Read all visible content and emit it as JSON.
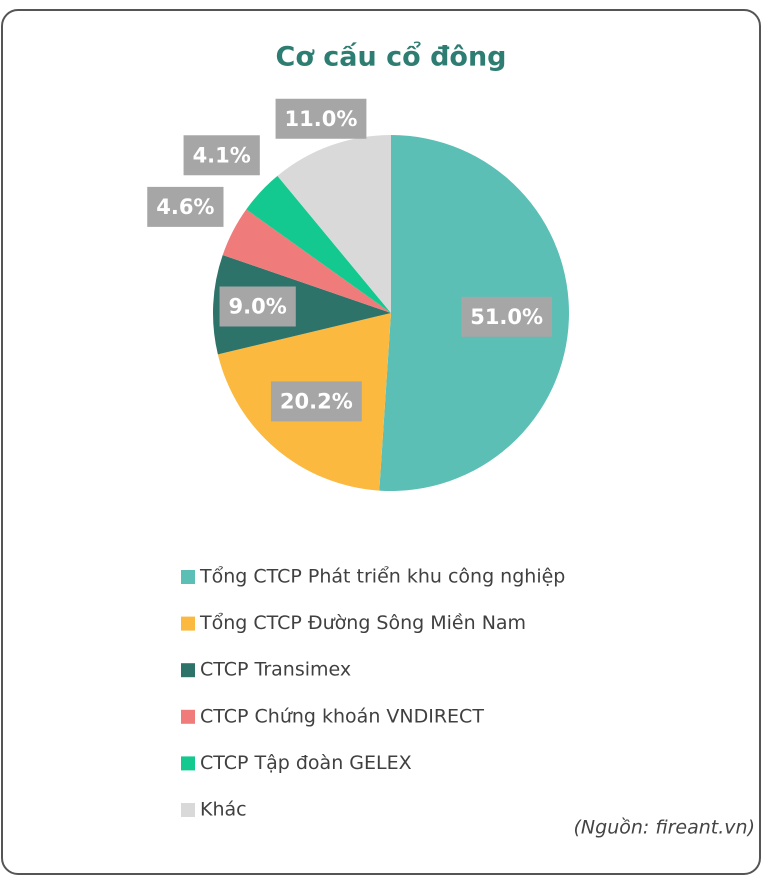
{
  "chart_data": {
    "type": "pie",
    "title": "Cơ cấu cổ đông",
    "categories": [
      "Tổng CTCP Phát triển khu công nghiệp",
      "Tổng CTCP Đường Sông Miền Nam",
      "CTCP Transimex",
      "CTCP Chứng khoán VNDIRECT",
      "CTCP Tập đoàn GELEX",
      "Khác"
    ],
    "values": [
      51,
      20.2,
      9,
      4.6,
      4.1,
      11
    ],
    "value_labels": [
      "51.0%",
      "20.2%",
      "9.0%",
      "4.6%",
      "4.1%",
      "11.0%"
    ],
    "colors": [
      "#5bbfb5",
      "#fbb940",
      "#2e736a",
      "#f07b7b",
      "#14c98f",
      "#d9d9d9"
    ],
    "source": "(Nguồn: fireant.vn)"
  }
}
